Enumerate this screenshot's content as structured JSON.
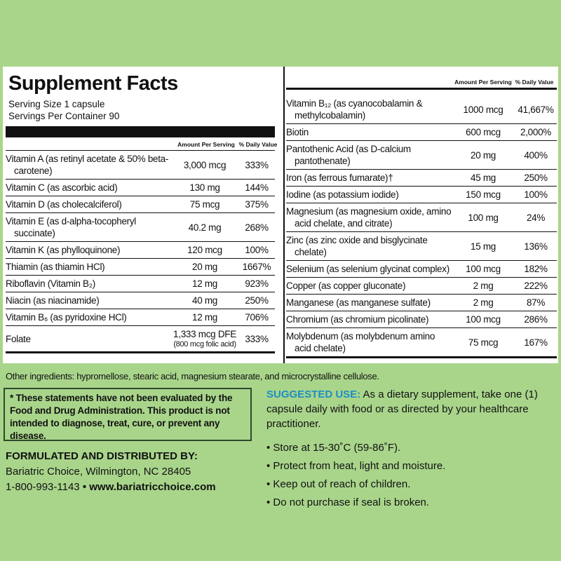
{
  "left_panel": {
    "title": "Supplement Facts",
    "serving_size": "Serving Size 1 capsule",
    "servings_per_container": "Servings Per Container 90",
    "columns": [
      "Amount Per Serving",
      "% Daily Value"
    ],
    "rows": [
      {
        "name": "Vitamin A (as retinyl acetate & 50% beta-carotene)",
        "amount": "3,000 mcg",
        "dv": "333%"
      },
      {
        "name": "Vitamin C (as ascorbic acid)",
        "amount": "130 mg",
        "dv": "144%"
      },
      {
        "name": "Vitamin D (as cholecalciferol)",
        "amount": "75 mcg",
        "dv": "375%"
      },
      {
        "name": "Vitamin E (as d-alpha-tocopheryl succinate)",
        "amount": "40.2 mg",
        "dv": "268%"
      },
      {
        "name": "Vitamin K (as phylloquinone)",
        "amount": "120 mcg",
        "dv": "100%"
      },
      {
        "name": "Thiamin (as thiamin HCl)",
        "amount": "20 mg",
        "dv": "1667%"
      },
      {
        "name": "Riboflavin (Vitamin B₂)",
        "amount": "12 mg",
        "dv": "923%"
      },
      {
        "name": "Niacin (as niacinamide)",
        "amount": "40 mg",
        "dv": "250%"
      },
      {
        "name": "Vitamin B₆ (as pyridoxine HCl)",
        "amount": "12 mg",
        "dv": "706%"
      },
      {
        "name": "Folate",
        "amount": "1,333 mcg DFE",
        "amount_note": "(800 mcg folic acid)",
        "dv": "333%"
      }
    ]
  },
  "right_panel": {
    "columns": [
      "Amount Per Serving",
      "% Daily Value"
    ],
    "rows": [
      {
        "name": "Vitamin B₁₂ (as cyanocobalamin & methylcobalamin)",
        "amount": "1000 mcg",
        "dv": "41,667%"
      },
      {
        "name": "Biotin",
        "amount": "600 mcg",
        "dv": "2,000%"
      },
      {
        "name": "Pantothenic Acid (as D-calcium pantothenate)",
        "amount": "20 mg",
        "dv": "400%"
      },
      {
        "name": "Iron (as ferrous fumarate)†",
        "amount": "45 mg",
        "dv": "250%"
      },
      {
        "name": "Iodine (as potassium iodide)",
        "amount": "150 mcg",
        "dv": "100%"
      },
      {
        "name": "Magnesium (as magnesium oxide, amino acid chelate, and citrate)",
        "amount": "100 mg",
        "dv": "24%"
      },
      {
        "name": "Zinc (as zinc oxide and bisglycinate chelate)",
        "amount": "15 mg",
        "dv": "136%"
      },
      {
        "name": "Selenium (as selenium glycinat complex)",
        "amount": "100 mcg",
        "dv": "182%"
      },
      {
        "name": "Copper (as copper gluconate)",
        "amount": "2 mg",
        "dv": "222%"
      },
      {
        "name": "Manganese (as manganese sulfate)",
        "amount": "2 mg",
        "dv": "87%"
      },
      {
        "name": "Chromium (as chromium picolinate)",
        "amount": "100 mcg",
        "dv": "286%"
      },
      {
        "name": "Molybdenum (as molybdenum amino acid chelate)",
        "amount": "75 mcg",
        "dv": "167%"
      }
    ]
  },
  "other_ingredients": "Other ingredients: hypromellose, stearic acid, magnesium stearate, and microcrystalline cellulose.",
  "disclaimer": "* These statements have not been evaluated by the Food and Drug Administration. This product is not intended to diagnose, treat, cure, or prevent any disease.",
  "distributor": {
    "heading": "FORMULATED AND DISTRIBUTED BY:",
    "address": "Bariatric Choice, Wilmington, NC 28405",
    "phone": "1-800-993-1143",
    "website": "www.bariatricchoice.com"
  },
  "suggested_use": {
    "label": "SUGGESTED USE:",
    "text": "As a dietary supplement, take one (1) capsule daily with food or as directed by your healthcare practitioner."
  },
  "bullets": [
    "Store at 15-30˚C (59-86˚F).",
    "Protect from heat, light and moisture.",
    "Keep out of reach of children.",
    "Do not purchase if seal is broken."
  ]
}
